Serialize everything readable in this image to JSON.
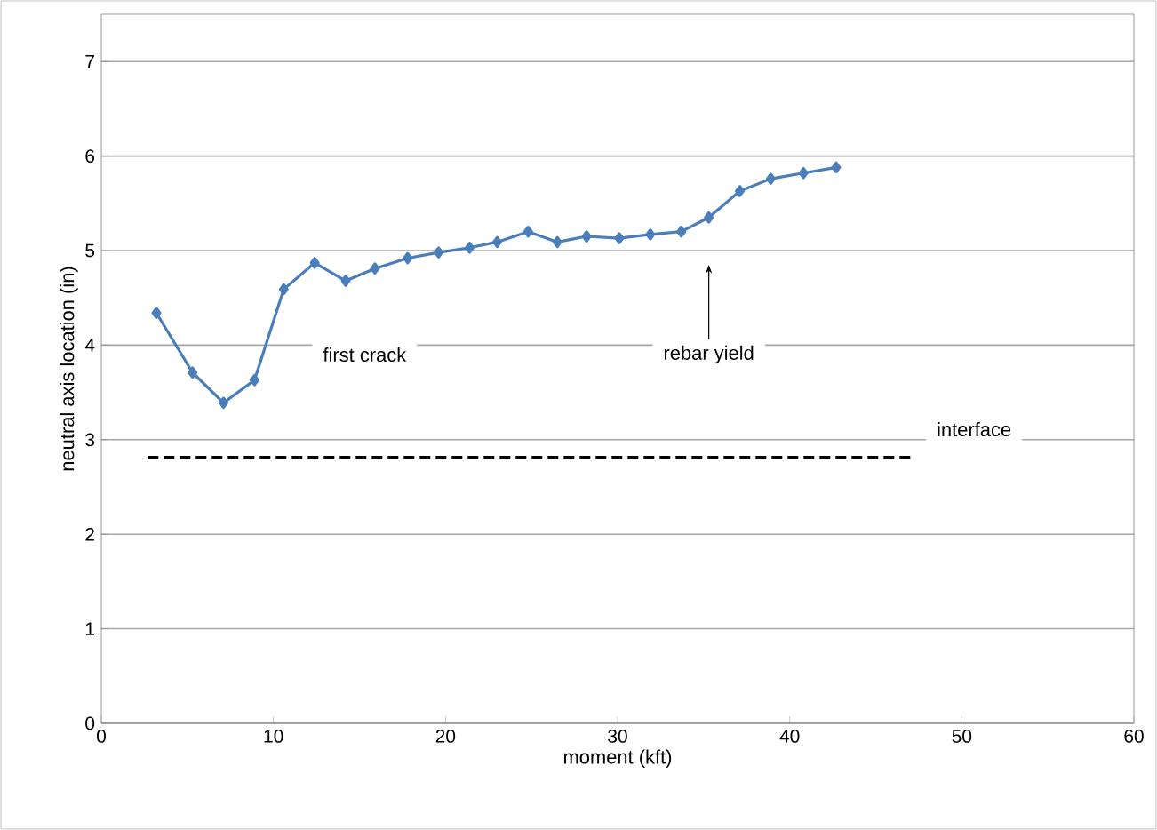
{
  "chart_data": {
    "type": "line",
    "xlabel": "moment (kft)",
    "ylabel": "neutral axis location (in)",
    "xlim": [
      0,
      60
    ],
    "xticks": [
      0,
      10,
      20,
      30,
      40,
      50,
      60
    ],
    "ylim": [
      0,
      7.5
    ],
    "yticks": [
      0,
      1,
      2,
      3,
      4,
      5,
      6,
      7
    ],
    "grid": "y",
    "series": [
      {
        "color": "#4a7ebb",
        "marker": "diamond",
        "line_style": "solid",
        "x": [
          3.2,
          5.3,
          7.1,
          8.9,
          10.6,
          12.4,
          14.2,
          15.9,
          17.8,
          19.6,
          21.4,
          23.0,
          24.8,
          26.5,
          28.2,
          30.1,
          31.9,
          33.7,
          35.3,
          37.1,
          38.9,
          40.8,
          42.7
        ],
        "values": [
          4.34,
          3.71,
          3.39,
          3.63,
          4.59,
          4.87,
          4.68,
          4.81,
          4.92,
          4.98,
          5.03,
          5.09,
          5.2,
          5.09,
          5.15,
          5.13,
          5.17,
          5.2,
          5.35,
          5.63,
          5.76,
          5.82,
          5.88
        ]
      },
      {
        "color": "#000000",
        "marker": "none",
        "line_style": "dashed",
        "x": [
          2.7,
          47.1
        ],
        "values": [
          2.81,
          2.81
        ]
      }
    ],
    "annotations": [
      "first crack",
      "rebar yield",
      {
        "text": "interface",
        "x": 47.1,
        "y": 2.81
      }
    ]
  }
}
